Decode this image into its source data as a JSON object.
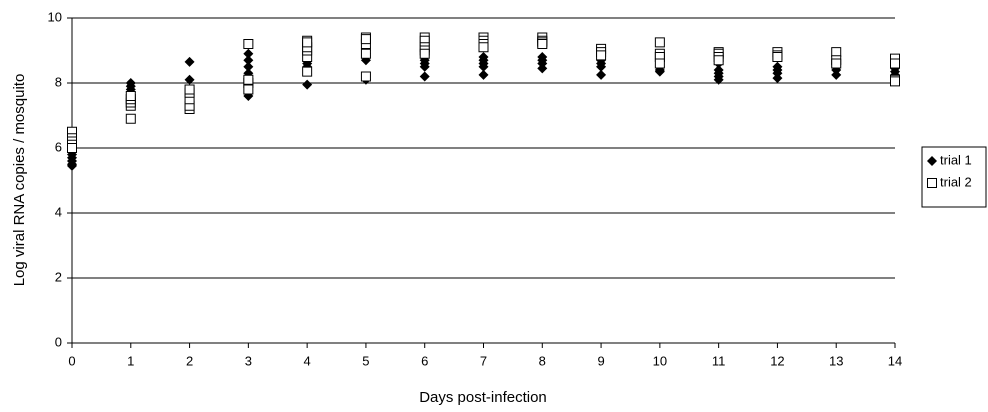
{
  "chart_data": {
    "type": "scatter",
    "x_label": "Days post-infection",
    "y_label": "Log viral RNA copies / mosquito",
    "xlim": [
      0,
      14
    ],
    "xticks": [
      0,
      1,
      2,
      3,
      4,
      5,
      6,
      7,
      8,
      9,
      10,
      11,
      12,
      13,
      14
    ],
    "ylim": [
      0,
      10
    ],
    "yticks": [
      0,
      2,
      4,
      6,
      8,
      10
    ],
    "grid": true,
    "legend": "right",
    "series": [
      {
        "name": "trial 1",
        "color": "#000000",
        "marker": "diamond",
        "x": [
          0,
          0,
          0,
          0,
          0,
          0,
          0,
          1,
          1,
          1,
          1,
          1,
          1,
          2,
          2,
          2,
          2,
          2,
          2,
          3,
          3,
          3,
          3,
          3,
          3,
          4,
          4,
          4,
          4,
          4,
          5,
          5,
          5,
          5,
          5,
          6,
          6,
          6,
          6,
          6,
          7,
          7,
          7,
          7,
          7,
          8,
          8,
          8,
          8,
          9,
          9,
          9,
          9,
          9,
          10,
          10,
          10,
          11,
          11,
          11,
          11,
          11,
          12,
          12,
          12,
          12,
          13,
          13,
          13,
          13,
          14,
          14,
          14
        ],
        "values": [
          5.5,
          5.6,
          5.7,
          5.8,
          5.9,
          6.0,
          5.45,
          7.6,
          7.7,
          7.8,
          7.9,
          8.0,
          7.65,
          8.65,
          8.1,
          7.7,
          7.6,
          7.5,
          7.8,
          7.6,
          8.3,
          8.5,
          8.7,
          8.9,
          8.0,
          7.95,
          8.6,
          8.7,
          8.8,
          8.5,
          8.1,
          8.7,
          8.9,
          9.0,
          9.1,
          8.2,
          8.5,
          8.6,
          8.7,
          8.8,
          8.25,
          8.5,
          8.6,
          8.7,
          8.8,
          8.45,
          8.6,
          8.7,
          8.8,
          8.25,
          8.5,
          8.6,
          8.7,
          8.9,
          8.35,
          8.4,
          8.5,
          8.1,
          8.2,
          8.3,
          8.4,
          8.6,
          8.15,
          8.3,
          8.4,
          8.5,
          8.25,
          8.4,
          8.5,
          8.6,
          8.25,
          8.35,
          8.45
        ]
      },
      {
        "name": "trial 2",
        "color": "#000000",
        "marker": "square",
        "x": [
          0,
          0,
          0,
          0,
          0,
          1,
          1,
          1,
          1,
          1,
          2,
          2,
          2,
          2,
          2,
          3,
          3,
          3,
          3,
          4,
          4,
          4,
          4,
          4,
          4,
          5,
          5,
          5,
          5,
          5,
          6,
          6,
          6,
          6,
          6,
          7,
          7,
          7,
          7,
          8,
          8,
          8,
          8,
          9,
          9,
          9,
          10,
          10,
          10,
          10,
          11,
          11,
          11,
          11,
          12,
          12,
          12,
          13,
          13,
          13,
          14,
          14,
          14,
          14
        ],
        "values": [
          6.5,
          6.3,
          6.2,
          6.1,
          6.0,
          6.9,
          7.3,
          7.4,
          7.5,
          7.6,
          7.2,
          7.3,
          7.5,
          7.7,
          7.8,
          9.2,
          8.0,
          7.8,
          8.1,
          8.35,
          8.8,
          9.0,
          9.1,
          9.3,
          9.25,
          8.2,
          9.2,
          9.4,
          9.35,
          8.9,
          9.4,
          9.3,
          9.1,
          9.0,
          8.9,
          9.4,
          9.3,
          9.2,
          9.1,
          9.4,
          9.3,
          9.25,
          9.2,
          9.05,
          8.95,
          8.85,
          9.25,
          8.9,
          8.8,
          8.6,
          8.95,
          8.9,
          8.8,
          8.7,
          8.95,
          8.85,
          8.8,
          8.95,
          8.7,
          8.6,
          8.75,
          8.6,
          8.1,
          8.05
        ]
      }
    ]
  }
}
